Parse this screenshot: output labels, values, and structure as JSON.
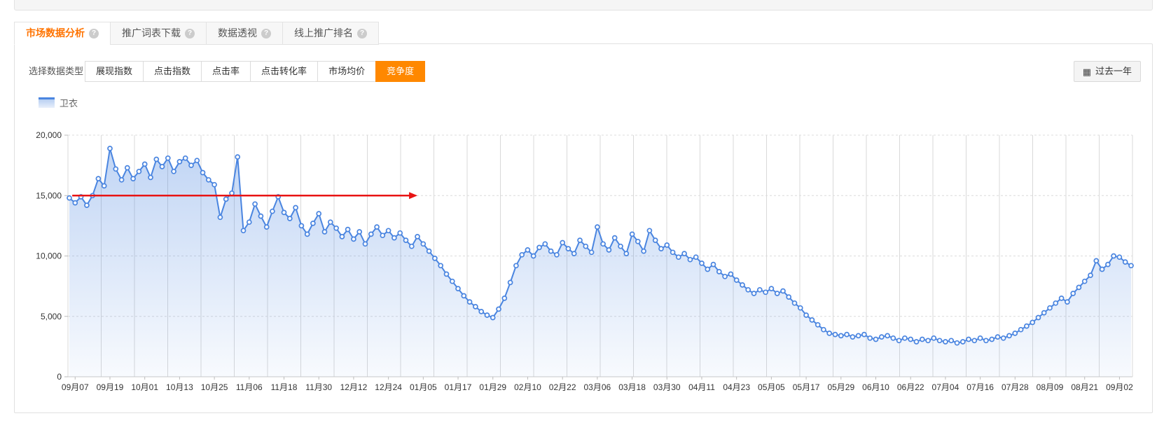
{
  "tabs": [
    {
      "label": "市场数据分析",
      "active": true
    },
    {
      "label": "推广词表下载",
      "active": false
    },
    {
      "label": "数据透视",
      "active": false
    },
    {
      "label": "线上推广排名",
      "active": false
    }
  ],
  "icons": {
    "help": "?",
    "calendar": "▦"
  },
  "toolbar": {
    "label": "选择数据类型：",
    "buttons": [
      {
        "label": "展现指数",
        "active": false
      },
      {
        "label": "点击指数",
        "active": false
      },
      {
        "label": "点击率",
        "active": false
      },
      {
        "label": "点击转化率",
        "active": false
      },
      {
        "label": "市场均价",
        "active": false
      },
      {
        "label": "竞争度",
        "active": true
      }
    ],
    "date_range": {
      "label": "过去一年"
    }
  },
  "legend": {
    "label": "卫衣"
  },
  "colors": {
    "accent_orange": "#ff8800",
    "tab_active_text": "#ff7300",
    "line_blue": "#4a85e0",
    "annotation_red": "#e81414",
    "grid_gray": "#d9d9d9"
  },
  "chart_data": {
    "type": "line",
    "title": "",
    "xlabel": "",
    "ylabel": "",
    "ylim": [
      0,
      20000
    ],
    "yticks": [
      0,
      5000,
      10000,
      15000,
      20000
    ],
    "ytick_labels": [
      "0",
      "5,000",
      "10,000",
      "15,000",
      "20,000"
    ],
    "grid": true,
    "legend_position": "top-left",
    "xtick_labels": [
      "09月07",
      "09月19",
      "10月01",
      "10月13",
      "10月25",
      "11月06",
      "11月18",
      "11月30",
      "12月12",
      "12月24",
      "01月05",
      "01月17",
      "01月29",
      "02月10",
      "02月22",
      "03月06",
      "03月18",
      "03月30",
      "04月11",
      "04月23",
      "05月05",
      "05月17",
      "05月29",
      "06月10",
      "06月22",
      "07月04",
      "07月16",
      "07月28",
      "08月09",
      "08月21",
      "09月02"
    ],
    "xtick_first_day": 2,
    "xtick_interval_days": 12,
    "series": [
      {
        "name": "卫衣",
        "start_day": 0,
        "step_days": 2,
        "values": [
          14800,
          14400,
          14900,
          14200,
          15000,
          16400,
          15800,
          18900,
          17200,
          16300,
          17300,
          16400,
          17000,
          17600,
          16500,
          18000,
          17400,
          18100,
          17000,
          17800,
          18100,
          17500,
          17900,
          16900,
          16300,
          15900,
          13200,
          14700,
          15200,
          18200,
          12100,
          12800,
          14300,
          13300,
          12400,
          13700,
          14900,
          13600,
          13100,
          14000,
          12500,
          11800,
          12700,
          13500,
          12000,
          12800,
          12300,
          11600,
          12200,
          11400,
          12000,
          11000,
          11800,
          12400,
          11700,
          12100,
          11500,
          11900,
          11300,
          10800,
          11600,
          11000,
          10400,
          9800,
          9200,
          8500,
          7900,
          7300,
          6700,
          6200,
          5800,
          5400,
          5100,
          4900,
          5600,
          6500,
          7800,
          9200,
          10100,
          10500,
          10000,
          10700,
          11000,
          10400,
          10100,
          11100,
          10600,
          10200,
          11300,
          10800,
          10300,
          12400,
          11000,
          10500,
          11500,
          10800,
          10200,
          11800,
          11200,
          10400,
          12100,
          11300,
          10600,
          10900,
          10300,
          9900,
          10200,
          9700,
          9900,
          9400,
          8900,
          9300,
          8700,
          8300,
          8500,
          8000,
          7600,
          7200,
          6900,
          7200,
          7000,
          7300,
          6900,
          7100,
          6600,
          6100,
          5700,
          5100,
          4700,
          4300,
          3900,
          3600,
          3500,
          3400,
          3500,
          3300,
          3400,
          3500,
          3200,
          3100,
          3300,
          3400,
          3200,
          3000,
          3200,
          3100,
          2900,
          3100,
          3000,
          3200,
          3000,
          2900,
          3000,
          2800,
          2900,
          3100,
          3000,
          3200,
          3000,
          3100,
          3300,
          3200,
          3400,
          3600,
          3900,
          4200,
          4500,
          4900,
          5300,
          5700,
          6100,
          6500,
          6200,
          6900,
          7400,
          7900,
          8400,
          9600,
          8900,
          9300,
          10000,
          9900,
          9500,
          9200
        ]
      }
    ],
    "annotation": {
      "type": "arrow",
      "value": 15000,
      "from_day": 1,
      "to_day": 120,
      "color": "#e81414"
    }
  }
}
